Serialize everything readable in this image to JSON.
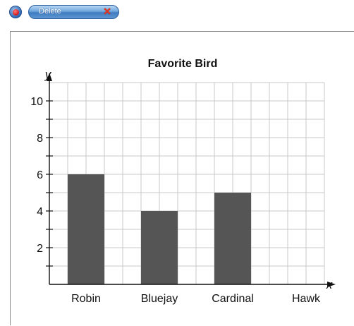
{
  "toolbar": {
    "delete_label": "Delete",
    "delete_icon": "close-x-icon",
    "round_button_icon": "record-icon",
    "accent_color": "#3f7bc0",
    "close_color": "#e8341c"
  },
  "chart_data": {
    "type": "bar",
    "title": "Favorite Bird",
    "xlabel": "x",
    "ylabel": "y",
    "categories": [
      "Robin",
      "Bluejay",
      "Cardinal",
      "Hawk"
    ],
    "values": [
      6,
      4,
      5,
      0
    ],
    "ylim": [
      0,
      10.5
    ],
    "yticks": [
      "2",
      "4",
      "6",
      "8",
      "10"
    ],
    "grid": true,
    "bar_color": "#555555",
    "grid_color": "#c9c9c9"
  }
}
